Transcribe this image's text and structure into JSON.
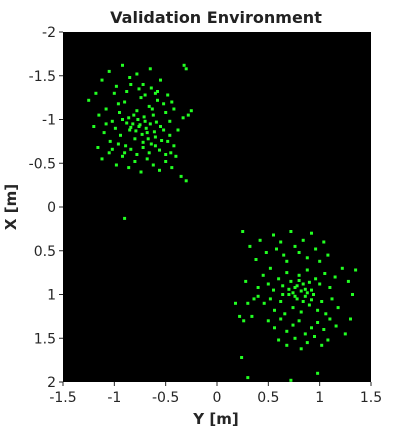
{
  "chart_data": {
    "type": "scatter",
    "title": "Validation Environment",
    "xlabel": "Y [m]",
    "ylabel": "X [m]",
    "xlim": [
      -1.5,
      1.5
    ],
    "ylim": [
      -2,
      2
    ],
    "y_axis_reversed": true,
    "grid": false,
    "legend": "none",
    "x_ticks": [
      "-1.5",
      "-1",
      "-0.5",
      "0",
      "0.5",
      "1",
      "1.5"
    ],
    "y_ticks": [
      "-2",
      "-1.5",
      "-1",
      "-0.5",
      "0",
      "0.5",
      "1",
      "1.5",
      "2"
    ],
    "background_color": "#000000",
    "marker_color": "#22ff22",
    "series": [
      {
        "points": [
          [
            -1.25,
            -1.22
          ],
          [
            -1.18,
            -1.3
          ],
          [
            -1.12,
            -1.45
          ],
          [
            -1.05,
            -1.55
          ],
          [
            -0.98,
            -1.38
          ],
          [
            -0.92,
            -1.62
          ],
          [
            -0.85,
            -1.48
          ],
          [
            -0.78,
            -1.52
          ],
          [
            -0.72,
            -1.4
          ],
          [
            -0.65,
            -1.58
          ],
          [
            -0.6,
            -1.3
          ],
          [
            -0.55,
            -1.45
          ],
          [
            -0.32,
            -1.62
          ],
          [
            -0.3,
            -1.58
          ],
          [
            -1.15,
            -1.05
          ],
          [
            -1.08,
            -1.12
          ],
          [
            -1.02,
            -0.98
          ],
          [
            -0.95,
            -1.08
          ],
          [
            -0.9,
            -1.2
          ],
          [
            -0.86,
            -1.02
          ],
          [
            -0.82,
            -0.95
          ],
          [
            -0.78,
            -1.1
          ],
          [
            -0.74,
            -1.25
          ],
          [
            -0.7,
            -0.98
          ],
          [
            -0.66,
            -1.15
          ],
          [
            -0.62,
            -1.05
          ],
          [
            -0.58,
            -1.22
          ],
          [
            -0.55,
            -0.92
          ],
          [
            -0.5,
            -1.08
          ],
          [
            -0.46,
            -0.98
          ],
          [
            -0.42,
            -1.12
          ],
          [
            -0.38,
            -0.88
          ],
          [
            -0.33,
            -1.02
          ],
          [
            -0.28,
            -1.05
          ],
          [
            -0.25,
            -1.1
          ],
          [
            -1.1,
            -0.85
          ],
          [
            -1.04,
            -0.75
          ],
          [
            -0.99,
            -0.9
          ],
          [
            -0.94,
            -0.82
          ],
          [
            -0.89,
            -0.7
          ],
          [
            -0.85,
            -0.88
          ],
          [
            -0.8,
            -0.78
          ],
          [
            -0.76,
            -0.92
          ],
          [
            -0.72,
            -0.68
          ],
          [
            -0.68,
            -0.85
          ],
          [
            -0.64,
            -0.72
          ],
          [
            -0.6,
            -0.8
          ],
          [
            -0.56,
            -0.65
          ],
          [
            -0.52,
            -0.88
          ],
          [
            -0.48,
            -0.75
          ],
          [
            -0.45,
            -0.62
          ],
          [
            -0.4,
            -0.58
          ],
          [
            -1.12,
            -0.55
          ],
          [
            -1.05,
            -0.62
          ],
          [
            -0.98,
            -0.48
          ],
          [
            -0.92,
            -0.58
          ],
          [
            -0.86,
            -0.45
          ],
          [
            -0.8,
            -0.52
          ],
          [
            -0.74,
            -0.4
          ],
          [
            -0.68,
            -0.55
          ],
          [
            -0.62,
            -0.48
          ],
          [
            -0.56,
            -0.42
          ],
          [
            -0.5,
            -0.52
          ],
          [
            -0.44,
            -0.45
          ],
          [
            -0.35,
            -0.35
          ],
          [
            -0.3,
            -0.3
          ],
          [
            -1.2,
            -0.92
          ],
          [
            -1.16,
            -0.68
          ],
          [
            -1.08,
            -0.95
          ],
          [
            -1.0,
            -1.3
          ],
          [
            -0.96,
            -1.18
          ],
          [
            -0.88,
            -1.32
          ],
          [
            -0.84,
            -1.4
          ],
          [
            -0.76,
            -1.35
          ],
          [
            -0.7,
            -1.28
          ],
          [
            -0.64,
            -1.36
          ],
          [
            -0.58,
            -1.32
          ],
          [
            -0.52,
            -1.18
          ],
          [
            -0.48,
            -1.28
          ],
          [
            -0.44,
            -1.2
          ],
          [
            -0.92,
            -1.0
          ],
          [
            -0.88,
            -0.96
          ],
          [
            -0.84,
            -0.91
          ],
          [
            -0.81,
            -1.05
          ],
          [
            -0.79,
            -0.87
          ],
          [
            -0.77,
            -1.0
          ],
          [
            -0.75,
            -0.94
          ],
          [
            -0.73,
            -0.83
          ],
          [
            -0.71,
            -1.03
          ],
          [
            -0.69,
            -0.9
          ],
          [
            -0.67,
            -0.78
          ],
          [
            -0.65,
            -0.95
          ],
          [
            -0.63,
            -1.12
          ],
          [
            -0.61,
            -0.86
          ],
          [
            -0.59,
            -0.97
          ],
          [
            -1.02,
            -0.66
          ],
          [
            -0.96,
            -0.72
          ],
          [
            -0.9,
            -0.62
          ],
          [
            -0.84,
            -0.66
          ],
          [
            -0.78,
            -0.6
          ],
          [
            -0.72,
            -0.74
          ],
          [
            -0.66,
            -0.62
          ],
          [
            -0.6,
            -0.7
          ],
          [
            -0.54,
            -0.76
          ],
          [
            -0.5,
            -0.6
          ],
          [
            -0.46,
            -0.82
          ],
          [
            -0.42,
            -0.7
          ],
          [
            -0.9,
            0.13
          ],
          [
            0.25,
            0.28
          ],
          [
            0.32,
            0.45
          ],
          [
            0.38,
            0.6
          ],
          [
            0.42,
            0.38
          ],
          [
            0.48,
            0.52
          ],
          [
            0.52,
            0.7
          ],
          [
            0.28,
            0.85
          ],
          [
            0.3,
            1.1
          ],
          [
            0.26,
            1.3
          ],
          [
            0.34,
            1.25
          ],
          [
            0.4,
            0.92
          ],
          [
            0.36,
            1.05
          ],
          [
            0.55,
            0.32
          ],
          [
            0.58,
            0.48
          ],
          [
            0.62,
            0.4
          ],
          [
            0.65,
            0.55
          ],
          [
            0.68,
            0.62
          ],
          [
            0.72,
            0.28
          ],
          [
            0.76,
            0.45
          ],
          [
            0.8,
            0.52
          ],
          [
            0.84,
            0.38
          ],
          [
            0.88,
            0.58
          ],
          [
            0.92,
            0.3
          ],
          [
            0.96,
            0.48
          ],
          [
            1.0,
            0.62
          ],
          [
            1.04,
            0.4
          ],
          [
            1.08,
            0.55
          ],
          [
            0.45,
            0.78
          ],
          [
            0.5,
            0.88
          ],
          [
            0.55,
            0.95
          ],
          [
            0.6,
            0.82
          ],
          [
            0.64,
            0.9
          ],
          [
            0.68,
            0.75
          ],
          [
            0.72,
            0.85
          ],
          [
            0.76,
            0.92
          ],
          [
            0.8,
            0.78
          ],
          [
            0.84,
            0.88
          ],
          [
            0.88,
            0.72
          ],
          [
            0.92,
            0.95
          ],
          [
            0.96,
            0.82
          ],
          [
            1.0,
            0.88
          ],
          [
            1.05,
            0.76
          ],
          [
            1.1,
            0.92
          ],
          [
            1.15,
            0.8
          ],
          [
            0.4,
            1.02
          ],
          [
            0.46,
            1.1
          ],
          [
            0.52,
            1.05
          ],
          [
            0.56,
            1.18
          ],
          [
            0.62,
            1.08
          ],
          [
            0.66,
            1.22
          ],
          [
            0.7,
            1.0
          ],
          [
            0.74,
            1.15
          ],
          [
            0.78,
            1.05
          ],
          [
            0.82,
            1.2
          ],
          [
            0.86,
            1.02
          ],
          [
            0.9,
            1.12
          ],
          [
            0.94,
            1.0
          ],
          [
            0.98,
            1.18
          ],
          [
            1.02,
            1.08
          ],
          [
            1.06,
            1.22
          ],
          [
            1.12,
            1.05
          ],
          [
            1.18,
            1.15
          ],
          [
            0.5,
            1.3
          ],
          [
            0.56,
            1.38
          ],
          [
            0.62,
            1.28
          ],
          [
            0.68,
            1.42
          ],
          [
            0.74,
            1.35
          ],
          [
            0.8,
            1.3
          ],
          [
            0.86,
            1.45
          ],
          [
            0.92,
            1.38
          ],
          [
            0.98,
            1.32
          ],
          [
            1.04,
            1.4
          ],
          [
            1.1,
            1.28
          ],
          [
            1.16,
            1.36
          ],
          [
            0.6,
            1.52
          ],
          [
            0.68,
            1.58
          ],
          [
            0.76,
            1.5
          ],
          [
            0.82,
            1.62
          ],
          [
            0.88,
            1.55
          ],
          [
            0.95,
            1.48
          ],
          [
            1.02,
            1.58
          ],
          [
            1.08,
            1.52
          ],
          [
            0.22,
            1.25
          ],
          [
            0.18,
            1.1
          ],
          [
            1.22,
            0.7
          ],
          [
            1.28,
            0.85
          ],
          [
            1.32,
            1.0
          ],
          [
            1.35,
            0.72
          ],
          [
            1.3,
            1.28
          ],
          [
            1.25,
            1.45
          ],
          [
            0.98,
            1.9
          ],
          [
            0.72,
            1.98
          ],
          [
            0.3,
            1.95
          ],
          [
            0.24,
            1.72
          ],
          [
            0.7,
            0.94
          ],
          [
            0.74,
            0.98
          ],
          [
            0.78,
            0.9
          ],
          [
            0.82,
            0.96
          ],
          [
            0.86,
            0.94
          ],
          [
            0.9,
            0.86
          ],
          [
            0.76,
            1.02
          ],
          [
            0.8,
            0.84
          ],
          [
            0.84,
            1.08
          ],
          [
            0.88,
            0.98
          ],
          [
            0.64,
            1.0
          ],
          [
            0.92,
            1.06
          ]
        ]
      }
    ]
  }
}
